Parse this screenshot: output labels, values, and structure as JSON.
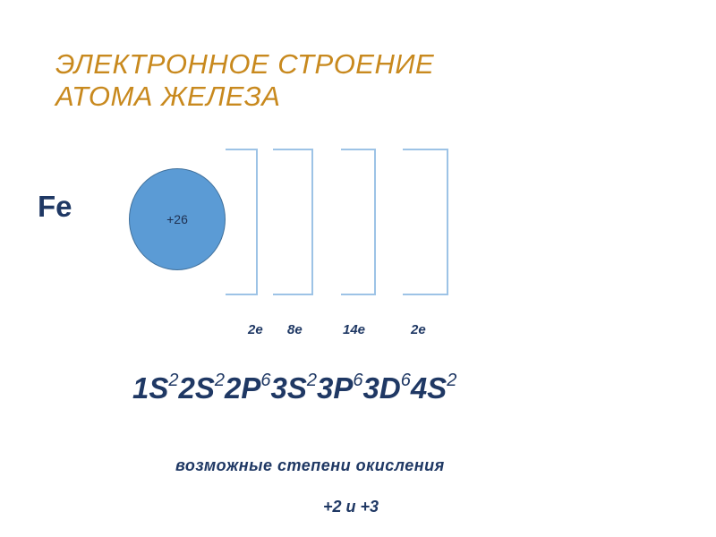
{
  "title": {
    "line1": "ЭЛЕКТРОННОЕ СТРОЕНИЕ",
    "line2": "АТОМА ЖЕЛЕЗА"
  },
  "element_symbol": "Fe",
  "nucleus_charge": "+26",
  "shells": [
    {
      "electrons": "2e"
    },
    {
      "electrons": "8e"
    },
    {
      "electrons": "14e"
    },
    {
      "electrons": "2e"
    }
  ],
  "configuration": [
    {
      "orbital": "1S",
      "count": "2"
    },
    {
      "orbital": "2S",
      "count": "2"
    },
    {
      "orbital": "2P",
      "count": "6"
    },
    {
      "orbital": "3S",
      "count": "2"
    },
    {
      "orbital": "3P",
      "count": "6"
    },
    {
      "orbital": "3D",
      "count": "6"
    },
    {
      "orbital": "4S",
      "count": "2"
    }
  ],
  "oxidation": {
    "label": "возможные степени окисления",
    "values": "+2 и +3"
  },
  "colors": {
    "title": "#c8891e",
    "text": "#1f3864",
    "nucleus": "#5b9bd5",
    "shell": "#9dc3e6"
  }
}
